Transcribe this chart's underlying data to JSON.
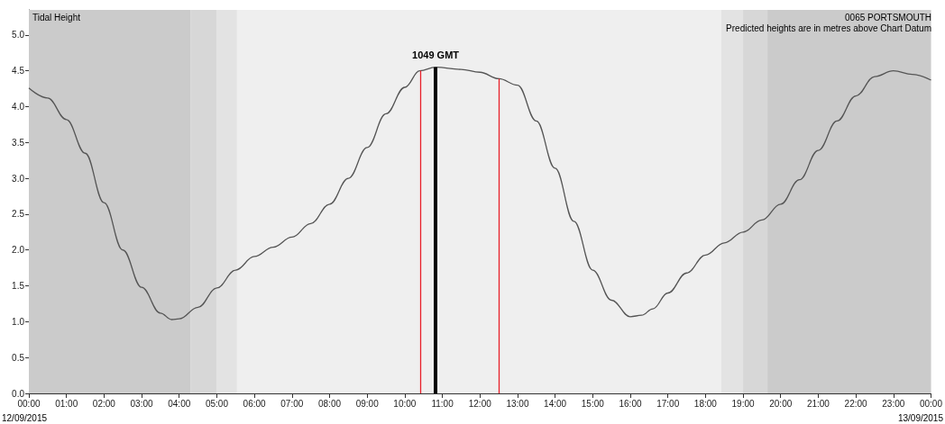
{
  "chart_data": {
    "type": "line",
    "title": "Tidal Height",
    "subtitle": "0065 PORTSMOUTH",
    "annotations": [
      "Predicted heights are in metres above Chart Datum",
      "12/09/2015",
      "13/09/2015"
    ],
    "series": [
      {
        "color": "#555555",
        "x": [
          0,
          0.5,
          1,
          1.5,
          2,
          2.5,
          3,
          3.5,
          3.8,
          4,
          4.5,
          5,
          5.5,
          6,
          6.5,
          7,
          7.5,
          8,
          8.5,
          9,
          9.5,
          10,
          10.4,
          10.82,
          11.5,
          12,
          12.5,
          13,
          13.5,
          14,
          14.5,
          15,
          15.5,
          16,
          16.3,
          16.6,
          17,
          17.5,
          18,
          18.5,
          19,
          19.5,
          20,
          20.5,
          21,
          21.5,
          22,
          22.5,
          23,
          23.5,
          24
        ],
        "values": [
          4.26,
          4.12,
          3.82,
          3.35,
          2.66,
          2.0,
          1.48,
          1.12,
          1.03,
          1.04,
          1.2,
          1.47,
          1.72,
          1.91,
          2.04,
          2.18,
          2.37,
          2.64,
          3.0,
          3.43,
          3.9,
          4.27,
          4.5,
          4.55,
          4.52,
          4.48,
          4.39,
          4.3,
          3.8,
          3.14,
          2.4,
          1.72,
          1.3,
          1.07,
          1.09,
          1.18,
          1.4,
          1.68,
          1.93,
          2.1,
          2.25,
          2.42,
          2.64,
          2.98,
          3.39,
          3.8,
          4.15,
          4.42,
          4.5,
          4.45,
          4.37
        ]
      }
    ],
    "xlim": [
      0,
      24
    ],
    "xticks": [
      {
        "value": 0,
        "label": "00:00"
      },
      {
        "value": 1,
        "label": "01:00"
      },
      {
        "value": 2,
        "label": "02:00"
      },
      {
        "value": 3,
        "label": "03:00"
      },
      {
        "value": 4,
        "label": "04:00"
      },
      {
        "value": 5,
        "label": "05:00"
      },
      {
        "value": 6,
        "label": "06:00"
      },
      {
        "value": 7,
        "label": "07:00"
      },
      {
        "value": 8,
        "label": "08:00"
      },
      {
        "value": 9,
        "label": "09:00"
      },
      {
        "value": 10,
        "label": "10:00"
      },
      {
        "value": 11,
        "label": "11:00"
      },
      {
        "value": 12,
        "label": "12:00"
      },
      {
        "value": 13,
        "label": "13:00"
      },
      {
        "value": 14,
        "label": "14:00"
      },
      {
        "value": 15,
        "label": "15:00"
      },
      {
        "value": 16,
        "label": "16:00"
      },
      {
        "value": 17,
        "label": "17:00"
      },
      {
        "value": 18,
        "label": "18:00"
      },
      {
        "value": 19,
        "label": "19:00"
      },
      {
        "value": 20,
        "label": "20:00"
      },
      {
        "value": 21,
        "label": "21:00"
      },
      {
        "value": 22,
        "label": "22:00"
      },
      {
        "value": 23,
        "label": "23:00"
      },
      {
        "value": 24,
        "label": "00:00"
      }
    ],
    "ylim": [
      0,
      5.35
    ],
    "yticks": [
      {
        "value": 0,
        "label": "0.0"
      },
      {
        "value": 0.5,
        "label": "0.5"
      },
      {
        "value": 1,
        "label": "1.0"
      },
      {
        "value": 1.5,
        "label": "1.5"
      },
      {
        "value": 2,
        "label": "2.0"
      },
      {
        "value": 2.5,
        "label": "2.5"
      },
      {
        "value": 3,
        "label": "3.0"
      },
      {
        "value": 3.5,
        "label": "3.5"
      },
      {
        "value": 4,
        "label": "4.0"
      },
      {
        "value": 4.5,
        "label": "4.5"
      },
      {
        "value": 5,
        "label": "5.0"
      }
    ],
    "bands": [
      {
        "axis": "x",
        "from": 0,
        "to": 4.3,
        "color": "#cbcbcb"
      },
      {
        "axis": "x",
        "from": 4.3,
        "to": 5.0,
        "color": "#d7d7d7"
      },
      {
        "axis": "x",
        "from": 5.0,
        "to": 5.53,
        "color": "#e3e3e3"
      },
      {
        "axis": "x",
        "from": 18.42,
        "to": 19.0,
        "color": "#e3e3e3"
      },
      {
        "axis": "x",
        "from": 19.0,
        "to": 19.65,
        "color": "#d7d7d7"
      },
      {
        "axis": "x",
        "from": 19.65,
        "to": 24,
        "color": "#cbcbcb"
      }
    ],
    "ref_lines": [
      {
        "axis": "x",
        "value": 10.41,
        "color": "#e8202a"
      },
      {
        "axis": "x",
        "value": 10.82,
        "label": "1049 GMT",
        "color": "#000000"
      },
      {
        "axis": "x",
        "value": 12.51,
        "color": "#e8202a"
      }
    ],
    "grid": false,
    "marker": "none",
    "line_style": "solid"
  }
}
